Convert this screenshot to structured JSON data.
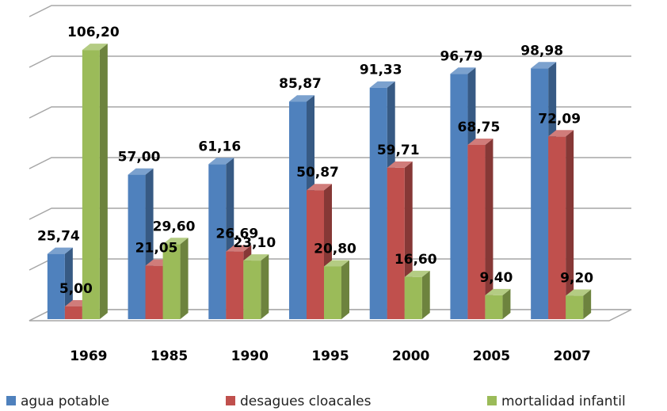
{
  "chart_data": {
    "type": "bar3d",
    "categories": [
      "1969",
      "1985",
      "1990",
      "1995",
      "2000",
      "2005",
      "2007"
    ],
    "series": [
      {
        "name": "agua potable",
        "color": "#4f81bd",
        "values": [
          25.74,
          57.0,
          61.16,
          85.87,
          91.33,
          96.79,
          98.98
        ],
        "value_labels": [
          "25,74",
          "57,00",
          "61,16",
          "85,87",
          "91,33",
          "96,79",
          "98,98"
        ]
      },
      {
        "name": "desagues cloacales",
        "color": "#c0504d",
        "values": [
          5.0,
          21.05,
          26.69,
          50.87,
          59.71,
          68.75,
          72.09
        ],
        "value_labels": [
          "5,00",
          "21,05",
          "26,69",
          "50,87",
          "59,71",
          "68,75",
          "72,09"
        ]
      },
      {
        "name": "mortalidad infantil",
        "color": "#9bbb59",
        "values": [
          106.2,
          29.6,
          23.1,
          20.8,
          16.6,
          9.4,
          9.2
        ],
        "value_labels": [
          "106,20",
          "29,60",
          "23,10",
          "20,80",
          "16,60",
          "9,40",
          "9,20"
        ]
      }
    ],
    "ylim": [
      0,
      120
    ],
    "yticks": [
      0,
      20,
      40,
      60,
      80,
      100,
      120
    ],
    "grid": true,
    "legend": "bottom"
  }
}
